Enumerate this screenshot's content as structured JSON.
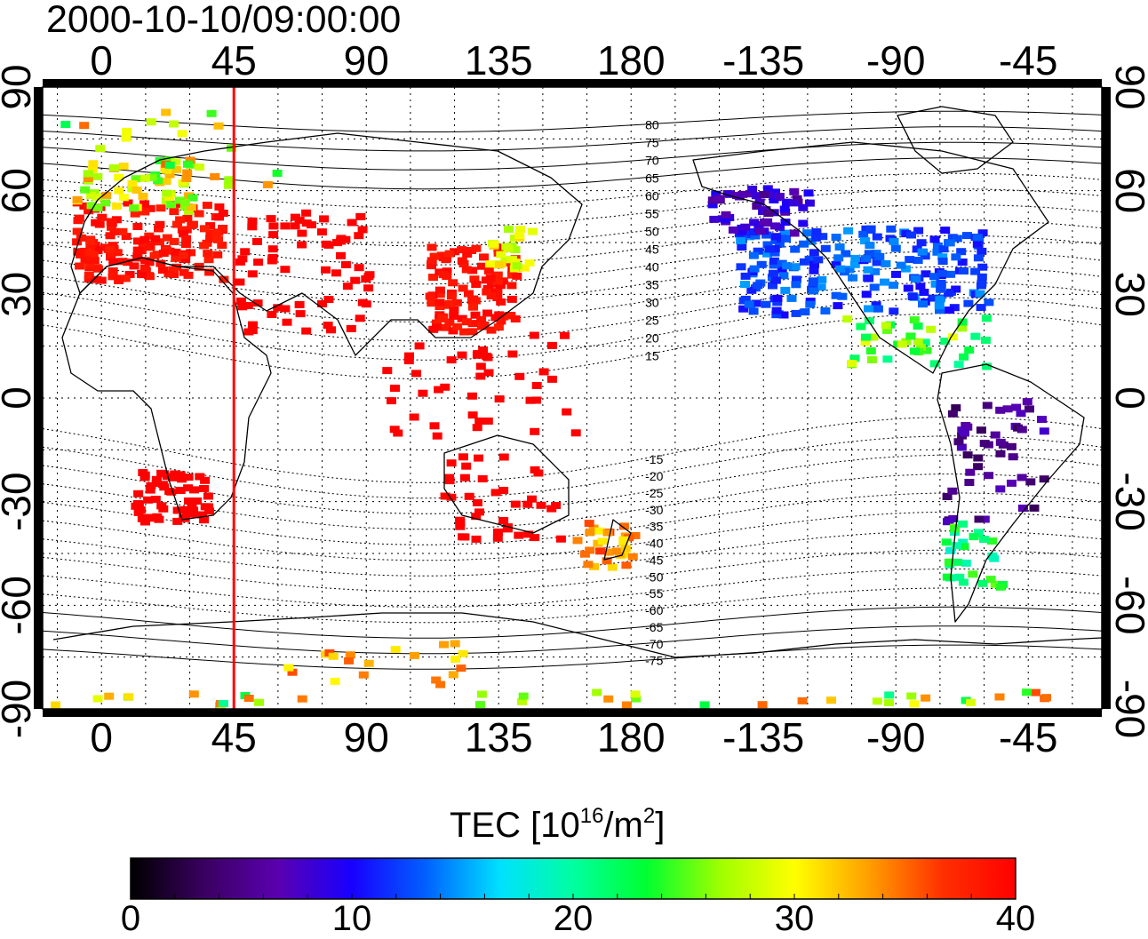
{
  "title": "2000-10-10/09:00:00",
  "axes": {
    "x_top_labels": [
      "0",
      "45",
      "90",
      "135",
      "180",
      "-135",
      "-90",
      "-45"
    ],
    "x_bottom_labels": [
      "0",
      "45",
      "90",
      "135",
      "180",
      "-135",
      "-90",
      "-45"
    ],
    "y_left_labels": [
      "90",
      "60",
      "30",
      "0",
      "-30",
      "-60",
      "-90"
    ],
    "y_right_labels": [
      "90",
      "60",
      "30",
      "0",
      "-30",
      "-60",
      "-90"
    ]
  },
  "map": {
    "longitude_range": [
      -20,
      340
    ],
    "latitude_range": [
      -90,
      90
    ],
    "marker_longitude": 45,
    "marker_color": "#ff0000",
    "grid": "dotted 15 degrees",
    "magnetic_latitude_labels": [
      "80",
      "75",
      "70",
      "65",
      "60",
      "55",
      "50",
      "45",
      "40",
      "35",
      "30",
      "25",
      "20",
      "15",
      "-15",
      "-20",
      "-25",
      "-30",
      "-35",
      "-40",
      "-45",
      "-50",
      "-55",
      "-60",
      "-65",
      "-70",
      "-75"
    ]
  },
  "colorbar": {
    "title_main": "TEC  [10",
    "title_sup1": "16",
    "title_mid": "/m",
    "title_sup2": "2",
    "title_end": "]",
    "min": 0,
    "max": 40,
    "tick_labels": [
      "0",
      "10",
      "20",
      "30",
      "40"
    ],
    "stops": [
      "#000000",
      "#3a0060",
      "#5a00b0",
      "#1800ff",
      "#0060ff",
      "#00e0ff",
      "#00ffa0",
      "#00ff30",
      "#a0ff00",
      "#ffff00",
      "#ffa000",
      "#ff3000",
      "#ff0000"
    ]
  }
}
